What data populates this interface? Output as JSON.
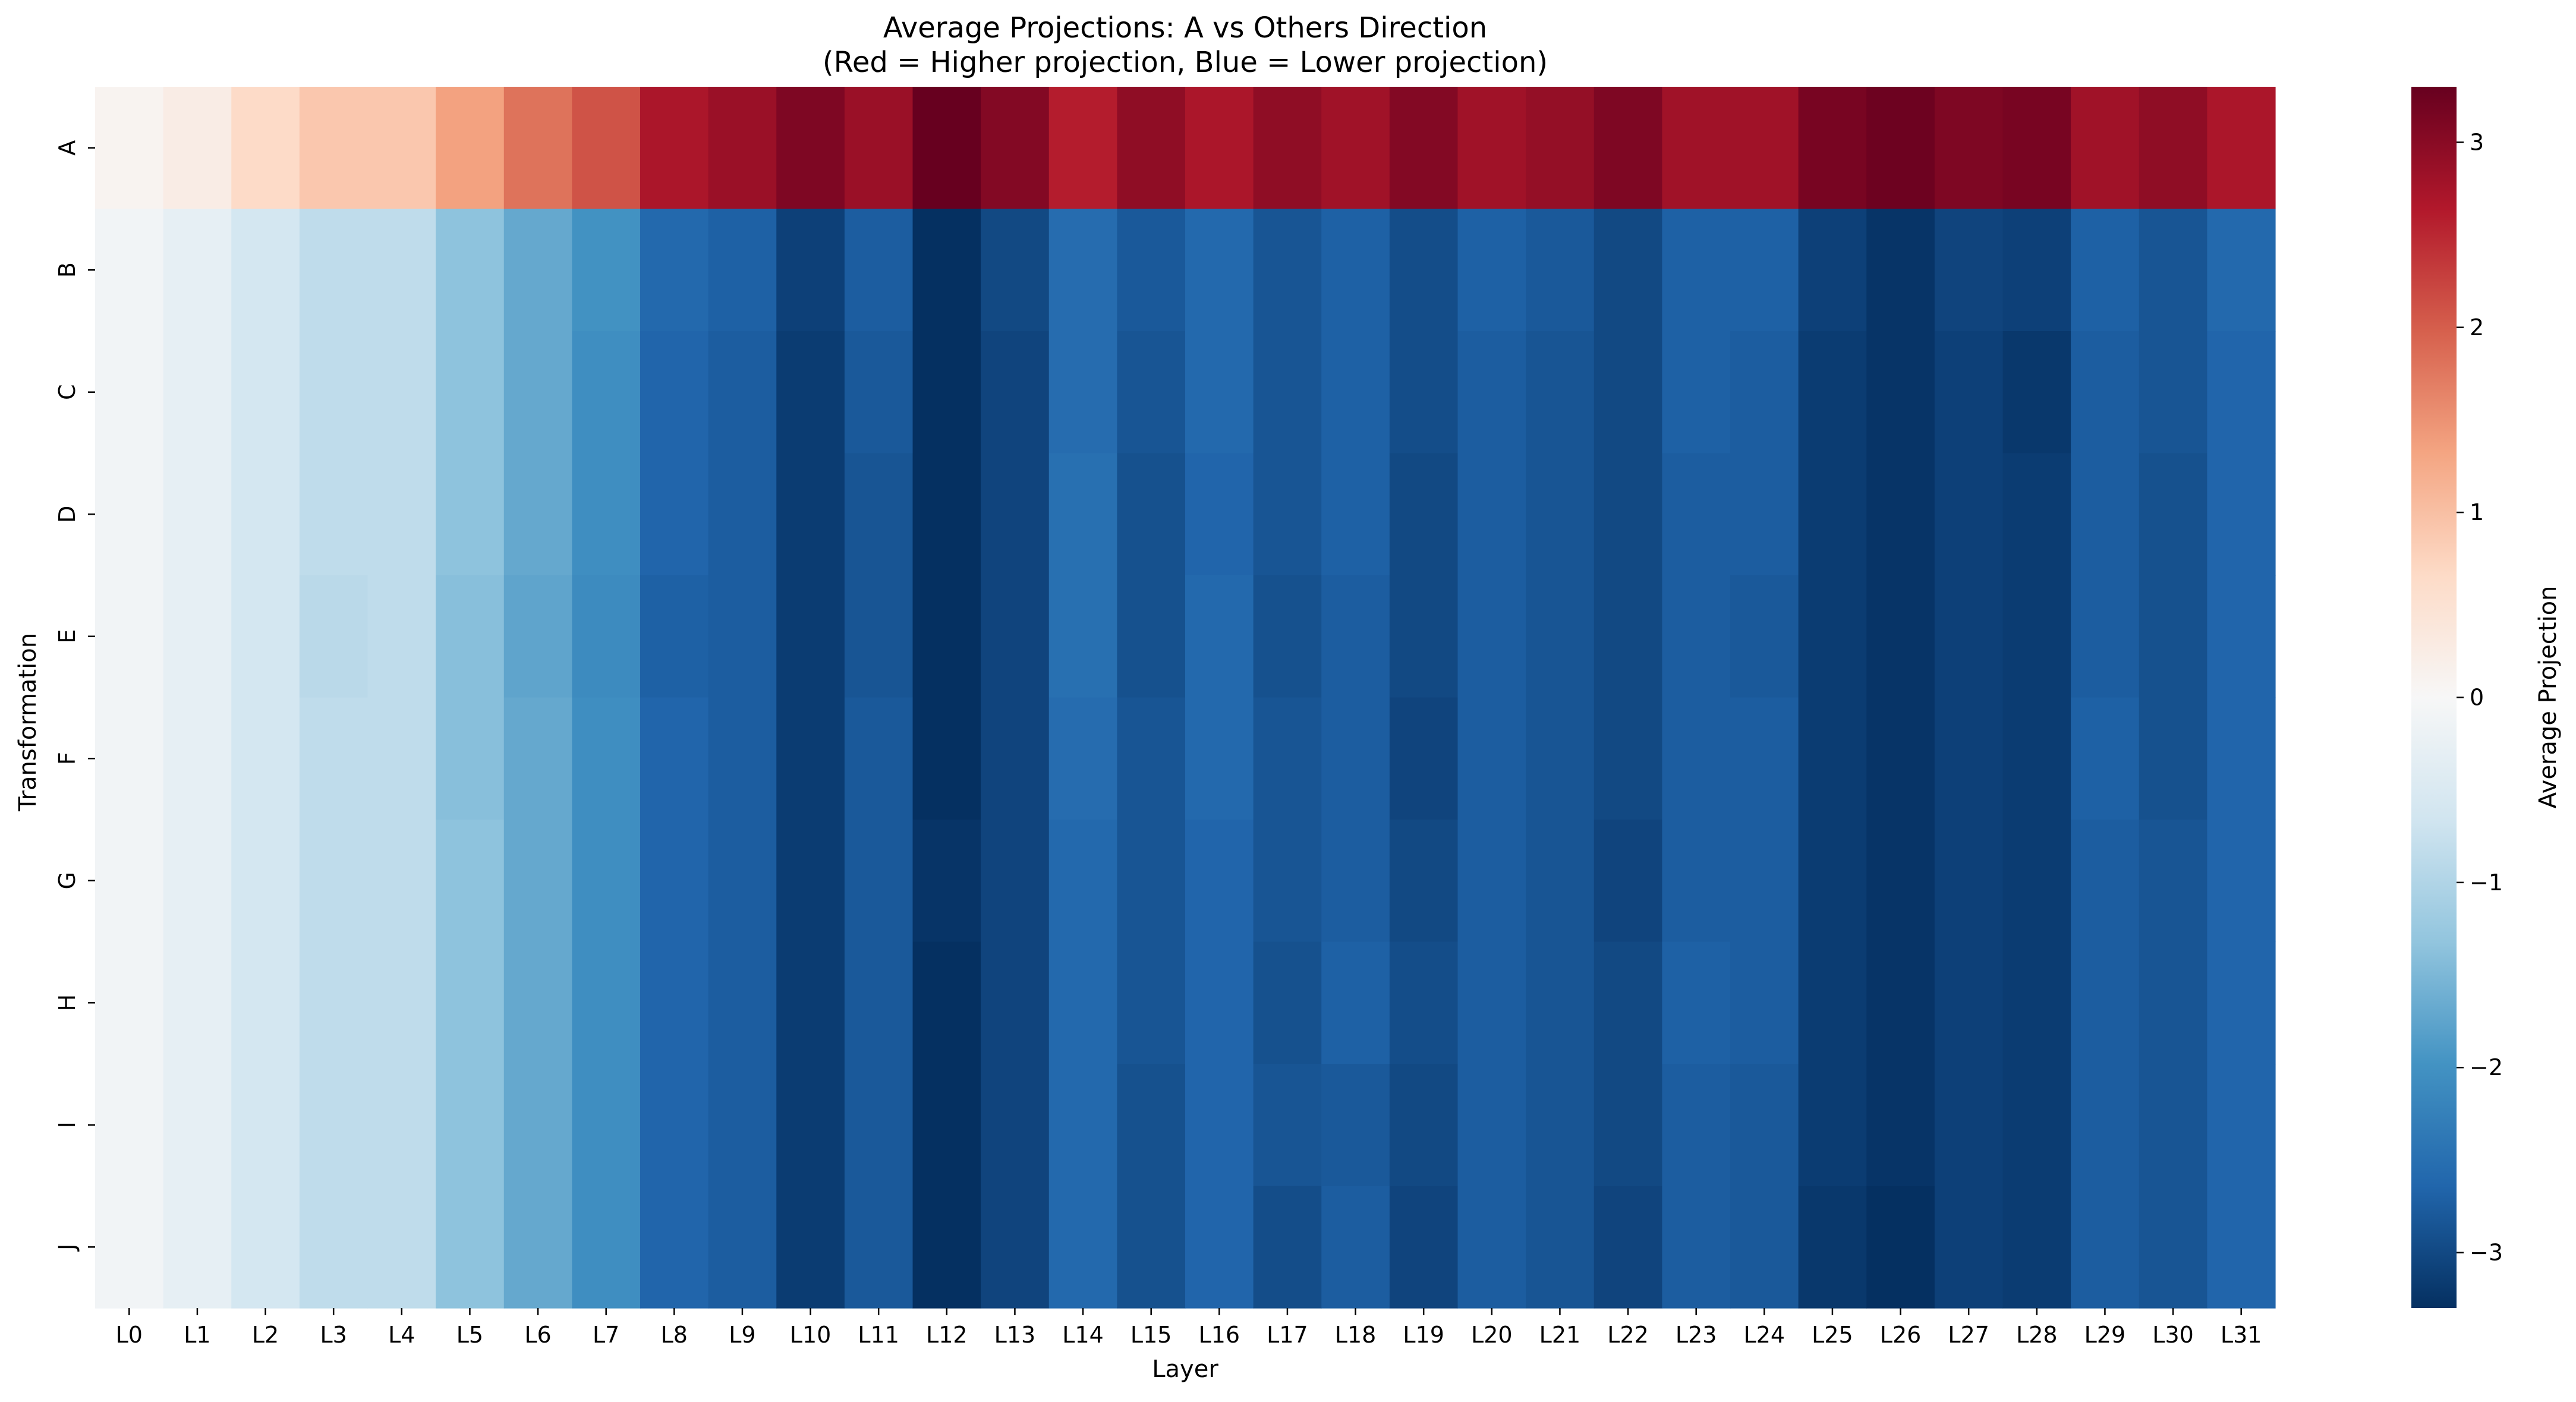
{
  "chart_data": {
    "type": "heatmap",
    "title": "Average Projections: A vs Others Direction",
    "subtitle": "(Red = Higher projection, Blue = Lower projection)",
    "xlabel": "Layer",
    "ylabel": "Transformation",
    "colorbar_label": "Average Projection",
    "colormap": "RdBu_r",
    "vmin": -3.3,
    "vmax": 3.3,
    "colorbar_ticks": [
      3,
      2,
      1,
      0,
      -1,
      -2,
      -3
    ],
    "colorbar_tick_labels": [
      "3",
      "2",
      "1",
      "0",
      "−1",
      "−2",
      "−3"
    ],
    "x": [
      "L0",
      "L1",
      "L2",
      "L3",
      "L4",
      "L5",
      "L6",
      "L7",
      "L8",
      "L9",
      "L10",
      "L11",
      "L12",
      "L13",
      "L14",
      "L15",
      "L16",
      "L17",
      "L18",
      "L19",
      "L20",
      "L21",
      "L22",
      "L23",
      "L24",
      "L25",
      "L26",
      "L27",
      "L28",
      "L29",
      "L30",
      "L31"
    ],
    "y": [
      "A",
      "B",
      "C",
      "D",
      "E",
      "F",
      "G",
      "H",
      "I",
      "J"
    ],
    "values": [
      [
        0.1,
        0.25,
        0.65,
        0.9,
        0.9,
        1.35,
        1.8,
        2.1,
        2.7,
        2.85,
        3.1,
        2.85,
        3.3,
        3.05,
        2.6,
        2.95,
        2.7,
        2.95,
        2.8,
        3.05,
        2.8,
        2.9,
        3.1,
        2.8,
        2.8,
        3.15,
        3.25,
        3.1,
        3.15,
        2.8,
        2.95,
        2.7
      ],
      [
        -0.1,
        -0.3,
        -0.6,
        -0.85,
        -0.85,
        -1.35,
        -1.7,
        -2.0,
        -2.6,
        -2.7,
        -3.1,
        -2.75,
        -3.3,
        -3.0,
        -2.55,
        -2.8,
        -2.6,
        -2.85,
        -2.7,
        -2.95,
        -2.7,
        -2.8,
        -3.0,
        -2.7,
        -2.7,
        -3.1,
        -3.25,
        -3.05,
        -3.1,
        -2.7,
        -2.85,
        -2.6
      ],
      [
        -0.1,
        -0.3,
        -0.6,
        -0.85,
        -0.85,
        -1.35,
        -1.7,
        -2.05,
        -2.65,
        -2.75,
        -3.15,
        -2.8,
        -3.3,
        -3.05,
        -2.55,
        -2.85,
        -2.6,
        -2.85,
        -2.7,
        -2.95,
        -2.75,
        -2.85,
        -3.0,
        -2.7,
        -2.75,
        -3.15,
        -3.25,
        -3.1,
        -3.2,
        -2.75,
        -2.85,
        -2.65
      ],
      [
        -0.1,
        -0.3,
        -0.6,
        -0.85,
        -0.85,
        -1.35,
        -1.7,
        -2.05,
        -2.65,
        -2.75,
        -3.15,
        -2.85,
        -3.3,
        -3.05,
        -2.5,
        -2.9,
        -2.65,
        -2.85,
        -2.7,
        -3.0,
        -2.75,
        -2.85,
        -3.0,
        -2.75,
        -2.75,
        -3.15,
        -3.25,
        -3.1,
        -3.15,
        -2.75,
        -2.9,
        -2.65
      ],
      [
        -0.1,
        -0.3,
        -0.6,
        -0.9,
        -0.85,
        -1.4,
        -1.75,
        -2.1,
        -2.7,
        -2.75,
        -3.15,
        -2.85,
        -3.3,
        -3.05,
        -2.5,
        -2.9,
        -2.6,
        -2.9,
        -2.75,
        -3.0,
        -2.75,
        -2.85,
        -3.0,
        -2.75,
        -2.8,
        -3.15,
        -3.25,
        -3.1,
        -3.15,
        -2.75,
        -2.9,
        -2.65
      ],
      [
        -0.1,
        -0.3,
        -0.6,
        -0.85,
        -0.85,
        -1.4,
        -1.7,
        -2.05,
        -2.65,
        -2.75,
        -3.15,
        -2.8,
        -3.3,
        -3.05,
        -2.55,
        -2.85,
        -2.6,
        -2.85,
        -2.75,
        -3.05,
        -2.75,
        -2.85,
        -3.0,
        -2.75,
        -2.75,
        -3.15,
        -3.25,
        -3.1,
        -3.15,
        -2.7,
        -2.9,
        -2.65
      ],
      [
        -0.1,
        -0.3,
        -0.6,
        -0.85,
        -0.85,
        -1.35,
        -1.7,
        -2.05,
        -2.65,
        -2.75,
        -3.15,
        -2.8,
        -3.25,
        -3.05,
        -2.6,
        -2.85,
        -2.65,
        -2.85,
        -2.75,
        -3.0,
        -2.75,
        -2.85,
        -3.05,
        -2.75,
        -2.75,
        -3.15,
        -3.25,
        -3.1,
        -3.15,
        -2.75,
        -2.85,
        -2.65
      ],
      [
        -0.1,
        -0.3,
        -0.6,
        -0.85,
        -0.85,
        -1.35,
        -1.7,
        -2.05,
        -2.65,
        -2.75,
        -3.15,
        -2.8,
        -3.3,
        -3.05,
        -2.6,
        -2.85,
        -2.65,
        -2.9,
        -2.7,
        -2.95,
        -2.75,
        -2.85,
        -3.0,
        -2.7,
        -2.75,
        -3.15,
        -3.25,
        -3.1,
        -3.15,
        -2.75,
        -2.85,
        -2.65
      ],
      [
        -0.1,
        -0.3,
        -0.6,
        -0.85,
        -0.85,
        -1.35,
        -1.7,
        -2.05,
        -2.65,
        -2.75,
        -3.15,
        -2.8,
        -3.3,
        -3.05,
        -2.6,
        -2.9,
        -2.65,
        -2.85,
        -2.8,
        -3.0,
        -2.75,
        -2.85,
        -3.0,
        -2.75,
        -2.8,
        -3.15,
        -3.25,
        -3.1,
        -3.15,
        -2.75,
        -2.85,
        -2.65
      ],
      [
        -0.1,
        -0.3,
        -0.6,
        -0.85,
        -0.85,
        -1.35,
        -1.7,
        -2.05,
        -2.65,
        -2.75,
        -3.15,
        -2.8,
        -3.3,
        -3.05,
        -2.6,
        -2.9,
        -2.65,
        -2.95,
        -2.75,
        -3.05,
        -2.75,
        -2.85,
        -3.05,
        -2.75,
        -2.8,
        -3.2,
        -3.3,
        -3.1,
        -3.15,
        -2.75,
        -2.85,
        -2.65
      ]
    ]
  }
}
